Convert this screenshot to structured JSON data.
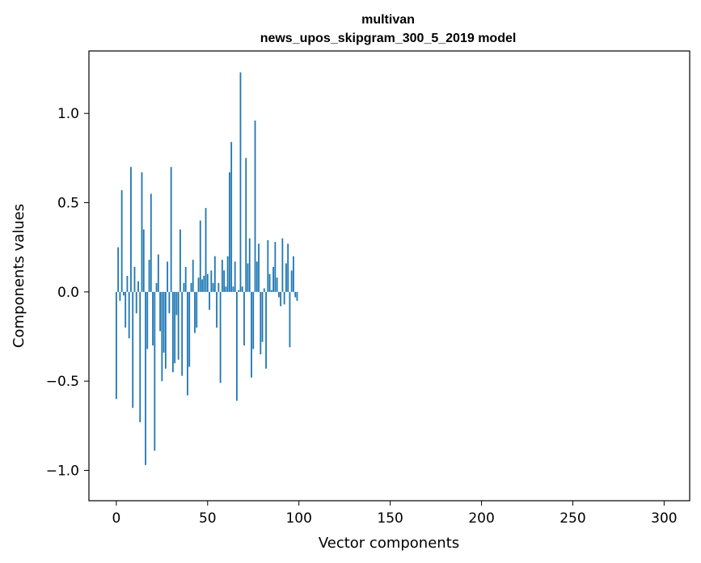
{
  "chart_data": {
    "type": "bar",
    "title_line1": "multivan",
    "title_line2": "news_upos_skipgram_300_5_2019 model",
    "xlabel": "Vector components",
    "ylabel": "Components values",
    "xlim": [
      -15,
      314
    ],
    "ylim": [
      -1.17,
      1.35
    ],
    "xticks": [
      0,
      50,
      100,
      150,
      200,
      250,
      300
    ],
    "xtick_labels": [
      "0",
      "50",
      "100",
      "150",
      "200",
      "250",
      "300"
    ],
    "yticks": [
      -1.0,
      -0.5,
      0.0,
      0.5,
      1.0
    ],
    "ytick_labels": [
      "−1.0",
      "−0.5",
      "0.0",
      "0.5",
      "1.0"
    ],
    "bar_color": "#1f77b4",
    "values": [
      -0.6,
      0.25,
      -0.05,
      0.57,
      -0.02,
      -0.2,
      0.09,
      -0.26,
      0.7,
      -0.65,
      0.14,
      -0.12,
      0.06,
      -0.73,
      0.67,
      0.35,
      -0.97,
      -0.32,
      0.18,
      0.55,
      -0.3,
      -0.89,
      0.05,
      0.21,
      -0.22,
      -0.5,
      -0.34,
      -0.43,
      0.17,
      -0.12,
      0.7,
      -0.45,
      -0.4,
      -0.13,
      -0.38,
      0.35,
      -0.47,
      0.05,
      0.14,
      -0.58,
      -0.42,
      0.05,
      0.18,
      -0.23,
      -0.2,
      0.08,
      0.4,
      0.07,
      0.09,
      0.47,
      0.1,
      -0.1,
      0.12,
      0.05,
      0.2,
      -0.2,
      0.05,
      -0.51,
      0.18,
      0.12,
      0.03,
      0.2,
      0.67,
      0.84,
      0.03,
      0.17,
      -0.61,
      0.01,
      1.23,
      0.03,
      -0.3,
      0.75,
      0.16,
      0.3,
      -0.48,
      -0.32,
      0.96,
      0.17,
      0.27,
      -0.35,
      -0.28,
      0.02,
      -0.43,
      0.29,
      0.1,
      0.01,
      0.14,
      0.28,
      0.08,
      -0.03,
      -0.08,
      0.3,
      -0.07,
      0.16,
      0.27,
      -0.31,
      0.12,
      0.2,
      -0.03,
      -0.05
    ]
  }
}
